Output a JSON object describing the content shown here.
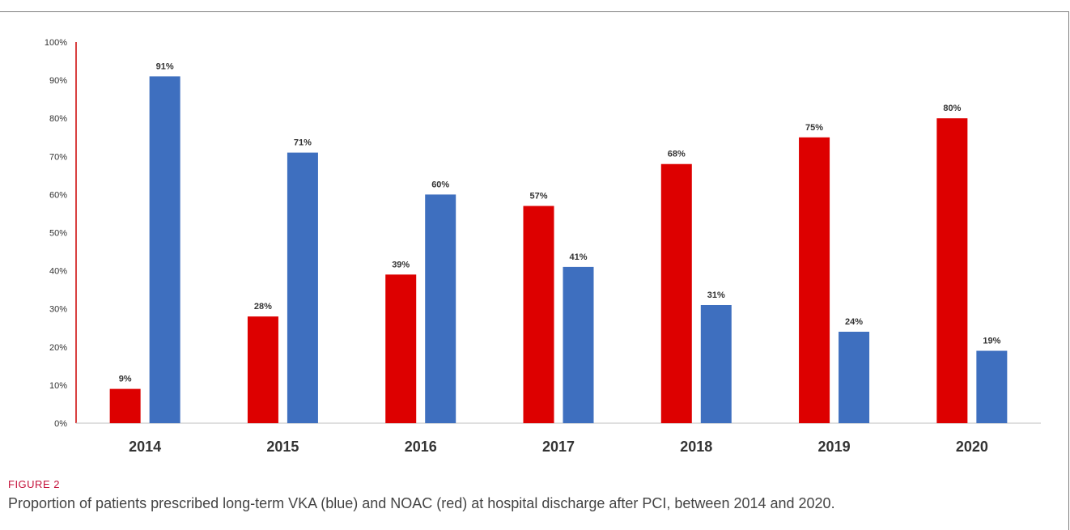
{
  "figure": {
    "label": "FIGURE 2",
    "caption": "Proportion of patients prescribed long-term VKA (blue) and NOAC (red) at hospital discharge after PCI, between 2014 and 2020."
  },
  "chart_data": {
    "type": "bar",
    "categories": [
      "2014",
      "2015",
      "2016",
      "2017",
      "2018",
      "2019",
      "2020"
    ],
    "series": [
      {
        "color": "#dd0000",
        "values": [
          9,
          28,
          39,
          57,
          68,
          75,
          80
        ],
        "labels": [
          "9%",
          "28%",
          "39%",
          "57%",
          "68%",
          "75%",
          "80%"
        ]
      },
      {
        "color": "#3e6fbf",
        "values": [
          91,
          71,
          60,
          41,
          31,
          24,
          19
        ],
        "labels": [
          "91%",
          "71%",
          "60%",
          "41%",
          "31%",
          "24%",
          "19%"
        ]
      }
    ],
    "ylim": [
      0,
      100
    ],
    "yticks": [
      0,
      10,
      20,
      30,
      40,
      50,
      60,
      70,
      80,
      90,
      100
    ],
    "ytick_labels": [
      "0%",
      "10%",
      "20%",
      "30%",
      "40%",
      "50%",
      "60%",
      "70%",
      "80%",
      "90%",
      "100%"
    ],
    "y_axis_color": "#cc0000",
    "grid": false,
    "legend": "none"
  }
}
